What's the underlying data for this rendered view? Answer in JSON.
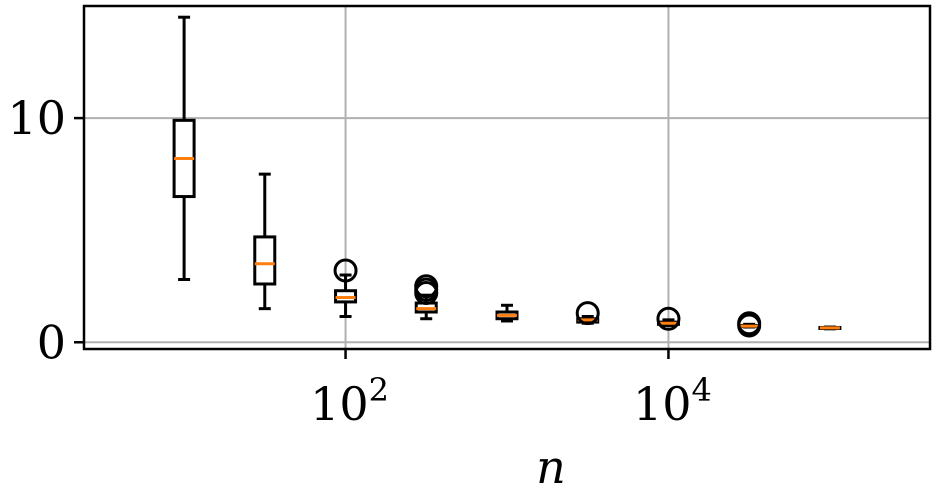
{
  "chart_data": {
    "type": "boxplot",
    "title": "",
    "xlabel": "n",
    "ylabel": "",
    "x_scale": "log",
    "xlim": [
      10,
      100000
    ],
    "ylim": [
      -0.3,
      15
    ],
    "grid": true,
    "x_ticks": [
      {
        "value": 100,
        "base": "10",
        "exp": "2"
      },
      {
        "value": 10000,
        "base": "10",
        "exp": "4"
      }
    ],
    "y_ticks": [
      {
        "value": 0,
        "label": "0"
      },
      {
        "value": 10,
        "label": "10"
      }
    ],
    "colors": {
      "box": "#000000",
      "median": "#ff7f0e",
      "grid": "#b0b0b0"
    },
    "boxes": [
      {
        "x": 10,
        "whislo": 2.8,
        "q1": 6.5,
        "med": 8.2,
        "q3": 9.9,
        "whishi": 14.5,
        "fliers": []
      },
      {
        "x": 31.6,
        "whislo": 1.5,
        "q1": 2.6,
        "med": 3.5,
        "q3": 4.7,
        "whishi": 7.5,
        "fliers": []
      },
      {
        "x": 100,
        "whislo": 1.15,
        "q1": 1.8,
        "med": 2.0,
        "q3": 2.3,
        "whishi": 3.0,
        "fliers": [
          3.2
        ]
      },
      {
        "x": 316,
        "whislo": 1.05,
        "q1": 1.35,
        "med": 1.5,
        "q3": 1.75,
        "whishi": 2.1,
        "fliers": [
          2.2,
          2.35,
          2.5
        ]
      },
      {
        "x": 1000,
        "whislo": 0.95,
        "q1": 1.05,
        "med": 1.2,
        "q3": 1.35,
        "whishi": 1.65,
        "fliers": []
      },
      {
        "x": 3162,
        "whislo": 0.85,
        "q1": 0.9,
        "med": 1.0,
        "q3": 1.05,
        "whishi": 1.15,
        "fliers": [
          1.3
        ]
      },
      {
        "x": 10000,
        "whislo": 0.75,
        "q1": 0.8,
        "med": 0.85,
        "q3": 0.9,
        "whishi": 1.0,
        "fliers": [
          1.05
        ]
      },
      {
        "x": 31623,
        "whislo": 0.68,
        "q1": 0.7,
        "med": 0.72,
        "q3": 0.75,
        "whishi": 0.8,
        "fliers": [
          0.75,
          0.85
        ]
      },
      {
        "x": 100000,
        "whislo": 0.6,
        "q1": 0.62,
        "med": 0.64,
        "q3": 0.66,
        "whishi": 0.68,
        "fliers": []
      }
    ]
  }
}
